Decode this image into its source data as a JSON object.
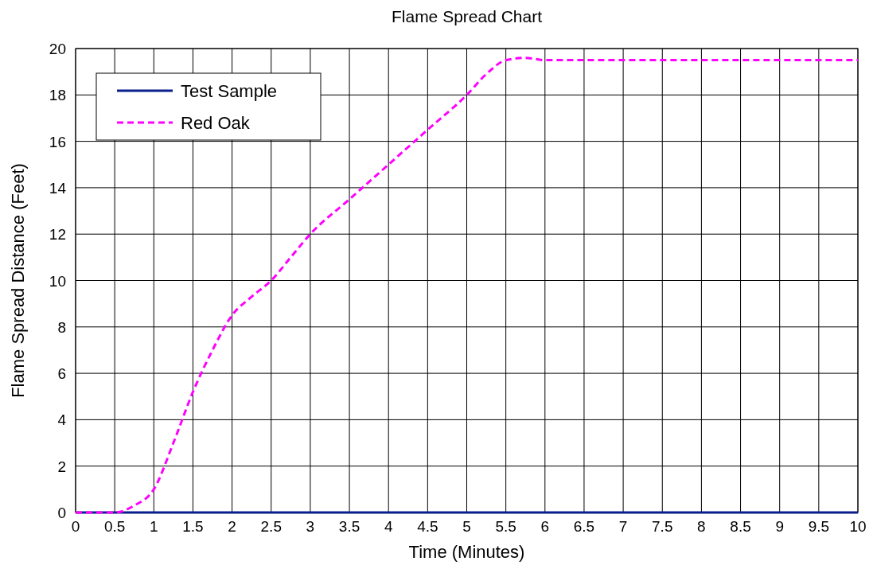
{
  "chart_data": {
    "type": "line",
    "title": "Flame Spread Chart",
    "xlabel": "Time (Minutes)",
    "ylabel": "Flame Spread Distance (Feet)",
    "x": [
      0,
      0.5,
      0.75,
      1,
      1.25,
      1.5,
      1.75,
      2,
      2.25,
      2.5,
      2.75,
      3,
      3.5,
      4,
      4.5,
      5,
      5.25,
      5.5,
      5.75,
      6,
      7,
      8,
      9,
      10
    ],
    "series": [
      {
        "name": "Test Sample",
        "color": "#0a1e8c",
        "line_style": "solid",
        "values": [
          0,
          0,
          0,
          0,
          0,
          0,
          0,
          0,
          0,
          0,
          0,
          0,
          0,
          0,
          0,
          0,
          0,
          0,
          0,
          0,
          0,
          0,
          0,
          0
        ]
      },
      {
        "name": "Red Oak",
        "color": "#ff00ff",
        "line_style": "dashed",
        "values": [
          0,
          0,
          0.3,
          1,
          3,
          5.2,
          7,
          8.5,
          9.3,
          10,
          11,
          12,
          13.5,
          15,
          16.5,
          18,
          18.9,
          19.5,
          19.6,
          19.5,
          19.5,
          19.5,
          19.5,
          19.5
        ]
      }
    ],
    "xlim": [
      0,
      10
    ],
    "xticks": [
      0,
      0.5,
      1,
      1.5,
      2,
      2.5,
      3,
      3.5,
      4,
      4.5,
      5,
      5.5,
      6,
      6.5,
      7,
      7.5,
      8,
      8.5,
      9,
      9.5,
      10
    ],
    "ylim": [
      0,
      20
    ],
    "yticks": [
      0,
      2,
      4,
      6,
      8,
      10,
      12,
      14,
      16,
      18,
      20
    ],
    "grid": true,
    "legend": "top left"
  }
}
